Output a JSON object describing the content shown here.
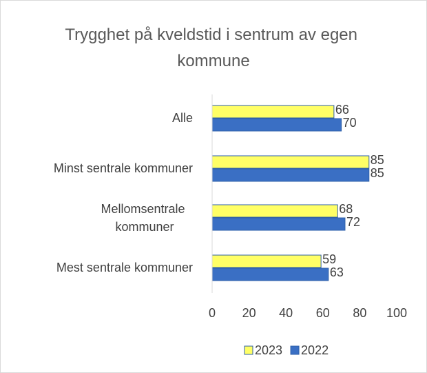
{
  "chart_data": {
    "type": "barh",
    "title": "Trygghet på kveldstid i sentrum av egen kommune",
    "categories": [
      "Alle",
      "Minst sentrale kommuner",
      "Mellomsentrale kommuner",
      "Mest sentrale kommuner"
    ],
    "series": [
      {
        "name": "2023",
        "color": "#ffff66",
        "values": [
          66,
          85,
          68,
          59
        ]
      },
      {
        "name": "2022",
        "color": "#3a6fc4",
        "values": [
          70,
          85,
          72,
          63
        ]
      }
    ],
    "xlim": [
      0,
      100
    ],
    "xticks": [
      0,
      20,
      40,
      60,
      80,
      100
    ],
    "grid": false,
    "legend": "bottom"
  }
}
